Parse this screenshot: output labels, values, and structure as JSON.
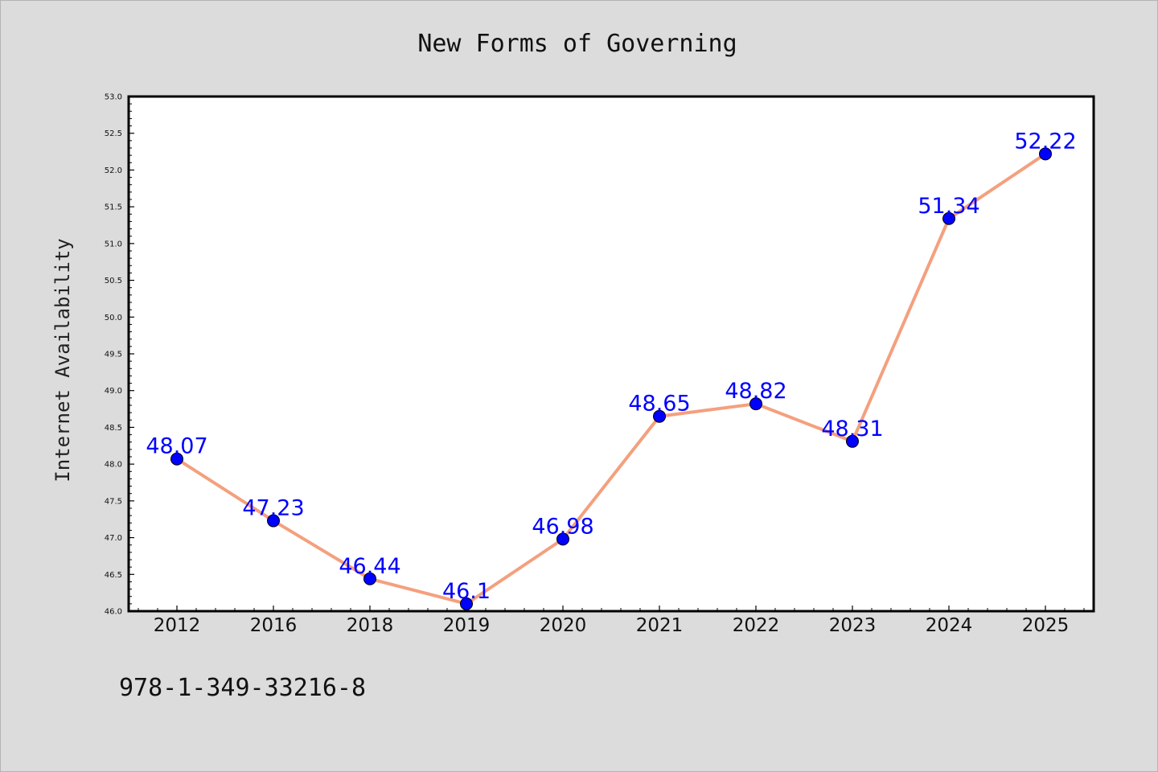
{
  "chart_data": {
    "type": "line",
    "title": "New Forms of Governing",
    "xlabel": "",
    "ylabel": "Internet Availability",
    "categories": [
      "2012",
      "2016",
      "2018",
      "2019",
      "2020",
      "2021",
      "2022",
      "2023",
      "2024",
      "2025"
    ],
    "values": [
      48.07,
      47.23,
      46.44,
      46.1,
      46.98,
      48.65,
      48.82,
      48.31,
      51.34,
      52.22
    ],
    "data_labels": [
      "48.07",
      "47.23",
      "46.44",
      "46.1",
      "46.98",
      "48.65",
      "48.82",
      "48.31",
      "51.34",
      "52.22"
    ],
    "ylim": [
      46.0,
      53.0
    ],
    "yticks": [
      "46.0",
      "46.5",
      "47.0",
      "47.5",
      "48.0",
      "48.5",
      "49.0",
      "49.5",
      "50.0",
      "50.5",
      "51.0",
      "51.5",
      "52.0",
      "52.5",
      "53.0"
    ],
    "grid": false,
    "legend": "none",
    "line_color": "#f4a07e",
    "marker_color": "#0000ff",
    "label_color": "#0000ff"
  },
  "footer": {
    "isbn": "978-1-349-33216-8"
  }
}
